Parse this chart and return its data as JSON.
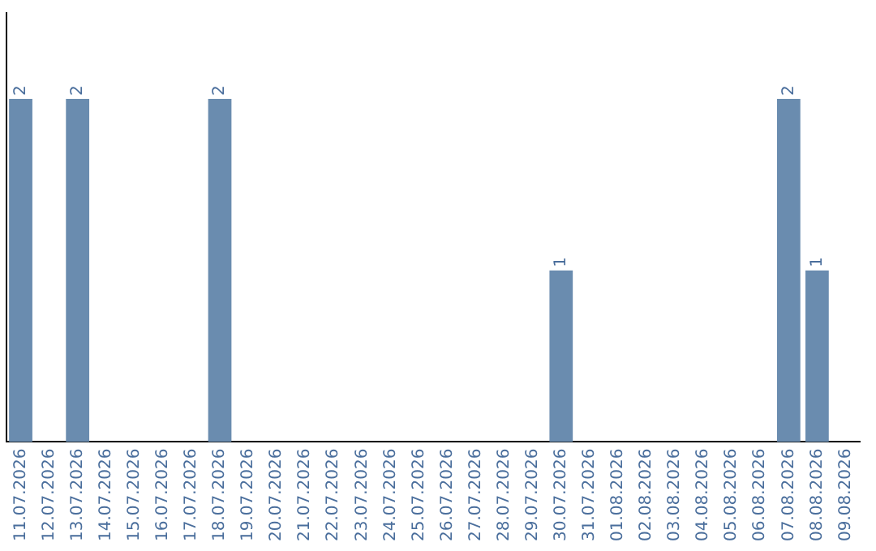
{
  "chart_data": {
    "type": "bar",
    "categories": [
      "11.07.2026",
      "12.07.2026",
      "13.07.2026",
      "14.07.2026",
      "15.07.2026",
      "16.07.2026",
      "17.07.2026",
      "18.07.2026",
      "19.07.2026",
      "20.07.2026",
      "21.07.2026",
      "22.07.2026",
      "23.07.2026",
      "24.07.2026",
      "25.07.2026",
      "26.07.2026",
      "27.07.2026",
      "28.07.2026",
      "29.07.2026",
      "30.07.2026",
      "31.07.2026",
      "01.08.2026",
      "02.08.2026",
      "03.08.2026",
      "04.08.2026",
      "05.08.2026",
      "06.08.2026",
      "07.08.2026",
      "08.08.2026",
      "09.08.2026"
    ],
    "values": [
      2,
      0,
      2,
      0,
      0,
      0,
      0,
      2,
      0,
      0,
      0,
      0,
      0,
      0,
      0,
      0,
      0,
      0,
      0,
      1,
      0,
      0,
      0,
      0,
      0,
      0,
      0,
      2,
      1,
      0
    ],
    "value_labels": [
      "2",
      null,
      "2",
      null,
      null,
      null,
      null,
      "2",
      null,
      null,
      null,
      null,
      null,
      null,
      null,
      null,
      null,
      null,
      null,
      "1",
      null,
      null,
      null,
      null,
      null,
      null,
      null,
      "2",
      "1",
      null
    ],
    "color": "#6a8caf",
    "tick_labels": "x"
  }
}
